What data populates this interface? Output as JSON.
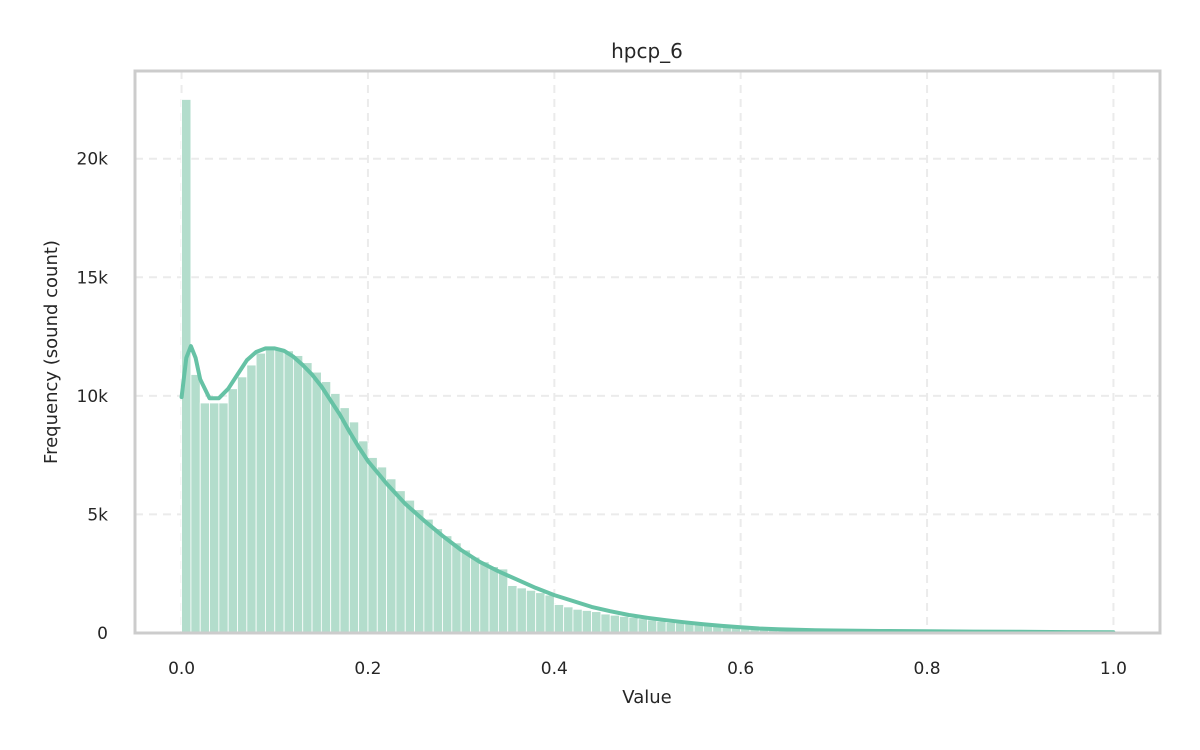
{
  "chart_data": {
    "type": "bar",
    "title": "hpcp_6",
    "xlabel": "Value",
    "ylabel": "Frequency (sound count)",
    "xlim": [
      -0.05,
      1.05
    ],
    "ylim": [
      0,
      23700
    ],
    "x_ticks": [
      {
        "value": 0.0,
        "label": "0.0"
      },
      {
        "value": 0.2,
        "label": "0.2"
      },
      {
        "value": 0.4,
        "label": "0.4"
      },
      {
        "value": 0.6,
        "label": "0.6"
      },
      {
        "value": 0.8,
        "label": "0.8"
      },
      {
        "value": 1.0,
        "label": "1.0"
      }
    ],
    "y_ticks": [
      {
        "value": 0,
        "label": "0"
      },
      {
        "value": 5000,
        "label": "5k"
      },
      {
        "value": 10000,
        "label": "10k"
      },
      {
        "value": 15000,
        "label": "15k"
      },
      {
        "value": 20000,
        "label": "20k"
      }
    ],
    "grid": true,
    "bar_color": "#b3ddcc",
    "curve_color": "#66c2a5",
    "series": [
      {
        "kind": "histogram",
        "bin_width": 0.01,
        "bin_starts": [
          0.0,
          0.01,
          0.02,
          0.03,
          0.04,
          0.05,
          0.06,
          0.07,
          0.08,
          0.09,
          0.1,
          0.11,
          0.12,
          0.13,
          0.14,
          0.15,
          0.16,
          0.17,
          0.18,
          0.19,
          0.2,
          0.21,
          0.22,
          0.23,
          0.24,
          0.25,
          0.26,
          0.27,
          0.28,
          0.29,
          0.3,
          0.31,
          0.32,
          0.33,
          0.34,
          0.35,
          0.36,
          0.37,
          0.38,
          0.39,
          0.4,
          0.41,
          0.42,
          0.43,
          0.44,
          0.45,
          0.46,
          0.47,
          0.48,
          0.49,
          0.5,
          0.51,
          0.52,
          0.53,
          0.54,
          0.55,
          0.56,
          0.57,
          0.58,
          0.59,
          0.6,
          0.61,
          0.62,
          0.63,
          0.64,
          0.65,
          0.66,
          0.67,
          0.68,
          0.69,
          0.7,
          0.71,
          0.72,
          0.73,
          0.74,
          0.75,
          0.76,
          0.77,
          0.78,
          0.79,
          0.8,
          0.81,
          0.82,
          0.83,
          0.84,
          0.85,
          0.86,
          0.87,
          0.88,
          0.89,
          0.9,
          0.91,
          0.92,
          0.93,
          0.94,
          0.95,
          0.96,
          0.97,
          0.98,
          0.99
        ],
        "values": [
          22500,
          10900,
          9700,
          9700,
          9700,
          10300,
          10800,
          11300,
          11800,
          12000,
          12000,
          11900,
          11700,
          11400,
          11000,
          10600,
          10100,
          9500,
          8900,
          8100,
          7400,
          7000,
          6500,
          6000,
          5600,
          5200,
          4800,
          4400,
          4100,
          3800,
          3500,
          3200,
          3000,
          2800,
          2700,
          2000,
          1900,
          1800,
          1700,
          1600,
          1200,
          1100,
          1000,
          950,
          900,
          800,
          750,
          700,
          650,
          600,
          550,
          500,
          450,
          420,
          400,
          370,
          340,
          310,
          280,
          250,
          230,
          210,
          190,
          170,
          155,
          140,
          130,
          120,
          110,
          100,
          95,
          90,
          85,
          80,
          75,
          70,
          65,
          60,
          58,
          55,
          52,
          50,
          48,
          46,
          44,
          42,
          40,
          38,
          36,
          34,
          32,
          30,
          28,
          26,
          24,
          22,
          20,
          18,
          16,
          14
        ]
      },
      {
        "kind": "kde",
        "x": [
          0.0,
          0.005,
          0.01,
          0.015,
          0.02,
          0.03,
          0.04,
          0.05,
          0.06,
          0.07,
          0.08,
          0.09,
          0.1,
          0.11,
          0.12,
          0.13,
          0.14,
          0.15,
          0.16,
          0.17,
          0.18,
          0.19,
          0.2,
          0.22,
          0.24,
          0.26,
          0.28,
          0.3,
          0.32,
          0.34,
          0.36,
          0.38,
          0.4,
          0.42,
          0.44,
          0.46,
          0.48,
          0.5,
          0.52,
          0.54,
          0.56,
          0.58,
          0.6,
          0.62,
          0.64,
          0.66,
          0.68,
          0.7,
          0.75,
          0.8,
          0.85,
          0.9,
          0.95,
          1.0
        ],
        "y": [
          9950,
          11600,
          12100,
          11600,
          10700,
          9900,
          9900,
          10300,
          10900,
          11500,
          11850,
          12000,
          12000,
          11900,
          11650,
          11300,
          10900,
          10400,
          9800,
          9200,
          8500,
          7850,
          7250,
          6300,
          5450,
          4750,
          4100,
          3500,
          3000,
          2600,
          2250,
          1900,
          1600,
          1350,
          1100,
          920,
          760,
          640,
          540,
          450,
          370,
          300,
          240,
          190,
          160,
          140,
          120,
          105,
          85,
          70,
          60,
          50,
          40,
          30
        ]
      }
    ]
  }
}
